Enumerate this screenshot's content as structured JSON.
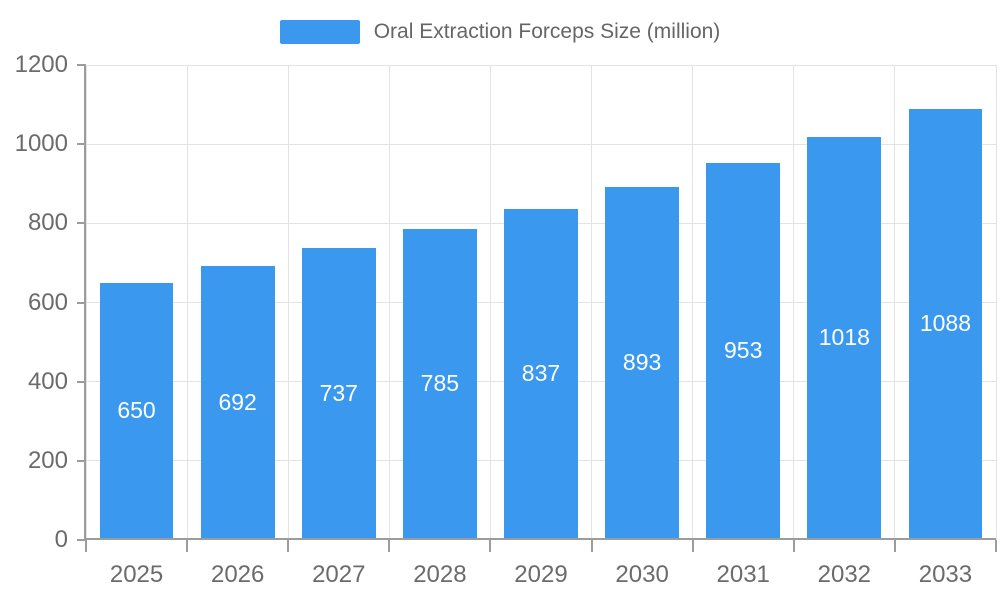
{
  "chart_data": {
    "type": "bar",
    "title": "Oral Extraction Forceps Size (million)",
    "categories": [
      "2025",
      "2026",
      "2027",
      "2028",
      "2029",
      "2030",
      "2031",
      "2032",
      "2033"
    ],
    "values": [
      650,
      692,
      737,
      785,
      837,
      893,
      953,
      1018,
      1088
    ],
    "xlabel": "",
    "ylabel": "",
    "ylim": [
      0,
      1200
    ],
    "ytick_step": 200,
    "yticks": [
      0,
      200,
      400,
      600,
      800,
      1000,
      1200
    ],
    "grid": true,
    "legend_position": "top-center",
    "value_labels_shown": true
  },
  "legend": {
    "label": "Oral Extraction Forceps Size (million)"
  },
  "colors": {
    "bar": "#3a99ee",
    "grid": "#e3e3e3",
    "axis": "#9c9c9c",
    "tick_text": "#6b6b6b",
    "legend_text": "#666666",
    "value_label": "#ffffff"
  }
}
